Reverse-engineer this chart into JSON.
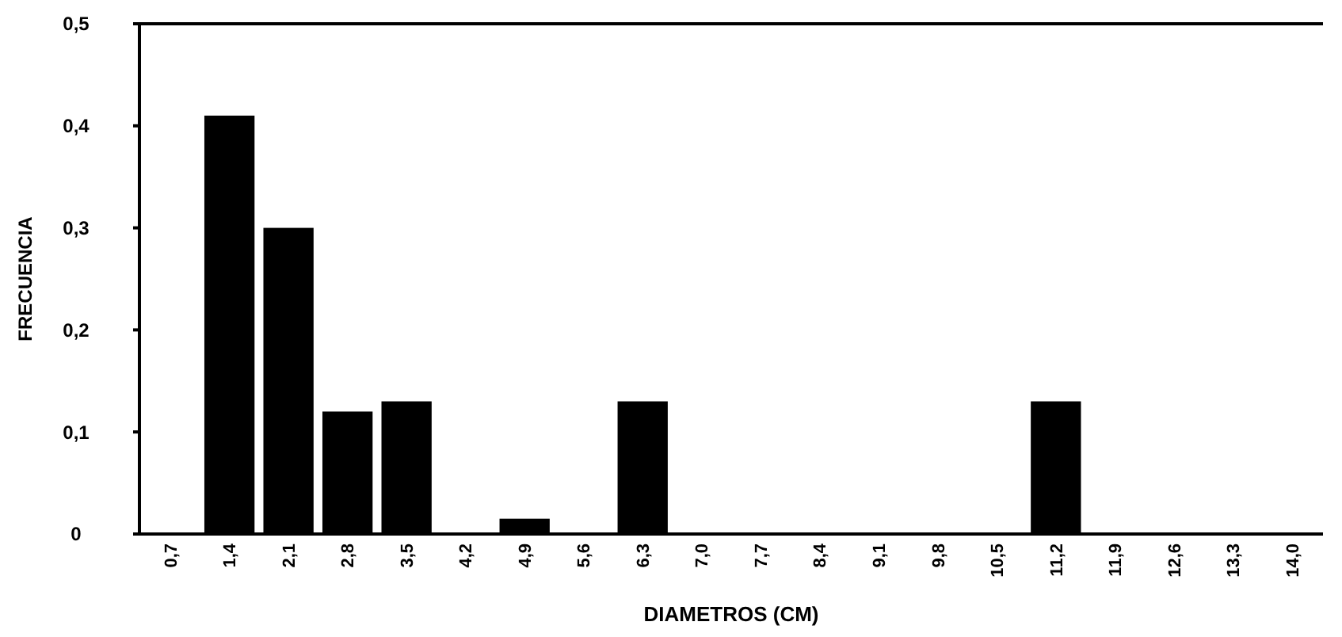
{
  "chart_data": {
    "type": "bar",
    "xlabel": "DIAMETROS (CM)",
    "ylabel": "FRECUENCIA",
    "categories": [
      "0,7",
      "1,4",
      "2,1",
      "2,8",
      "3,5",
      "4,2",
      "4,9",
      "5,6",
      "6,3",
      "7,0",
      "7,7",
      "8,4",
      "9,1",
      "9,8",
      "10,5",
      "11,2",
      "11,9",
      "12,6",
      "13,3",
      "14,0"
    ],
    "values": [
      0,
      0.41,
      0.3,
      0.12,
      0.13,
      0,
      0.015,
      0,
      0.13,
      0,
      0,
      0,
      0,
      0,
      0,
      0.13,
      0,
      0,
      0,
      0
    ],
    "color": "#000000",
    "ylim": [
      0,
      0.5
    ],
    "yticks": [
      {
        "value": 0,
        "label": "0"
      },
      {
        "value": 0.1,
        "label": "0,1"
      },
      {
        "value": 0.2,
        "label": "0,2"
      },
      {
        "value": 0.3,
        "label": "0,3"
      },
      {
        "value": 0.4,
        "label": "0,4"
      },
      {
        "value": 0.5,
        "label": "0,5"
      }
    ]
  }
}
